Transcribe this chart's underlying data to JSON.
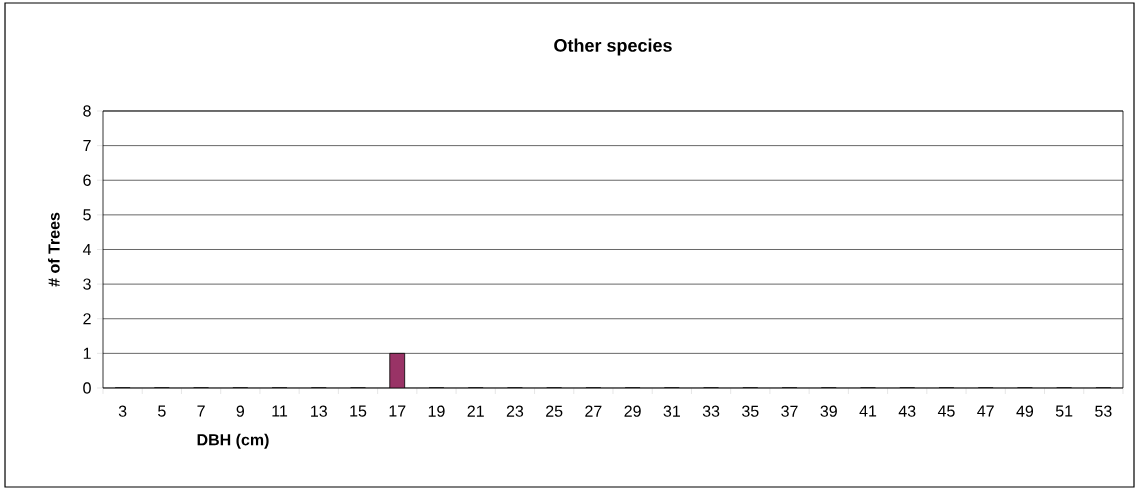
{
  "chart_data": {
    "type": "bar",
    "title": "Other species",
    "xlabel": "DBH (cm)",
    "ylabel": "# of Trees",
    "categories": [
      "3",
      "5",
      "7",
      "9",
      "11",
      "13",
      "15",
      "17",
      "19",
      "21",
      "23",
      "25",
      "27",
      "29",
      "31",
      "33",
      "35",
      "37",
      "39",
      "41",
      "43",
      "45",
      "47",
      "49",
      "51",
      "53"
    ],
    "values": [
      0,
      0,
      0,
      0,
      0,
      0,
      0,
      1,
      0,
      0,
      0,
      0,
      0,
      0,
      0,
      0,
      0,
      0,
      0,
      0,
      0,
      0,
      0,
      0,
      0,
      0
    ],
    "color": "#993366",
    "ylim": [
      0,
      8
    ],
    "yticks": [
      0,
      1,
      2,
      3,
      4,
      5,
      6,
      7,
      8
    ],
    "grid": "y"
  }
}
